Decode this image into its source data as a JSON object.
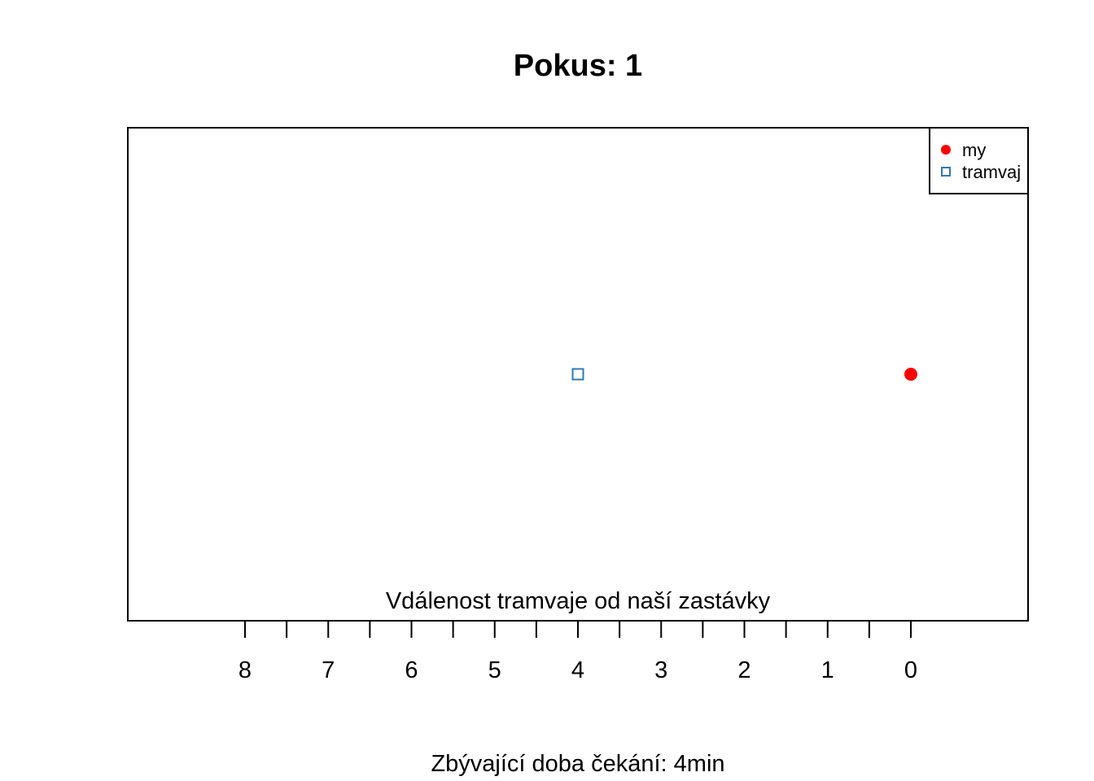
{
  "chart_data": {
    "type": "scatter",
    "title": "Pokus: 1",
    "xlabel": "Vdálenost tramvaje od naší zastávky",
    "subtitle": "Zbývající doba čekání: 4min",
    "x_reversed": true,
    "xlim": [
      0,
      8
    ],
    "major_ticks": [
      8,
      7,
      6,
      5,
      4,
      3,
      2,
      1,
      0
    ],
    "minor_ticks": [
      7.5,
      6.5,
      5.5,
      4.5,
      3.5,
      2.5,
      1.5,
      0.5
    ],
    "grid": false,
    "legend_position": "top-right",
    "series": [
      {
        "name": "my",
        "x": [
          0
        ],
        "marker": "filled-circle",
        "color": "#ff0000"
      },
      {
        "name": "tramvaj",
        "x": [
          4
        ],
        "marker": "open-square",
        "color": "#2e7ab6"
      }
    ]
  }
}
